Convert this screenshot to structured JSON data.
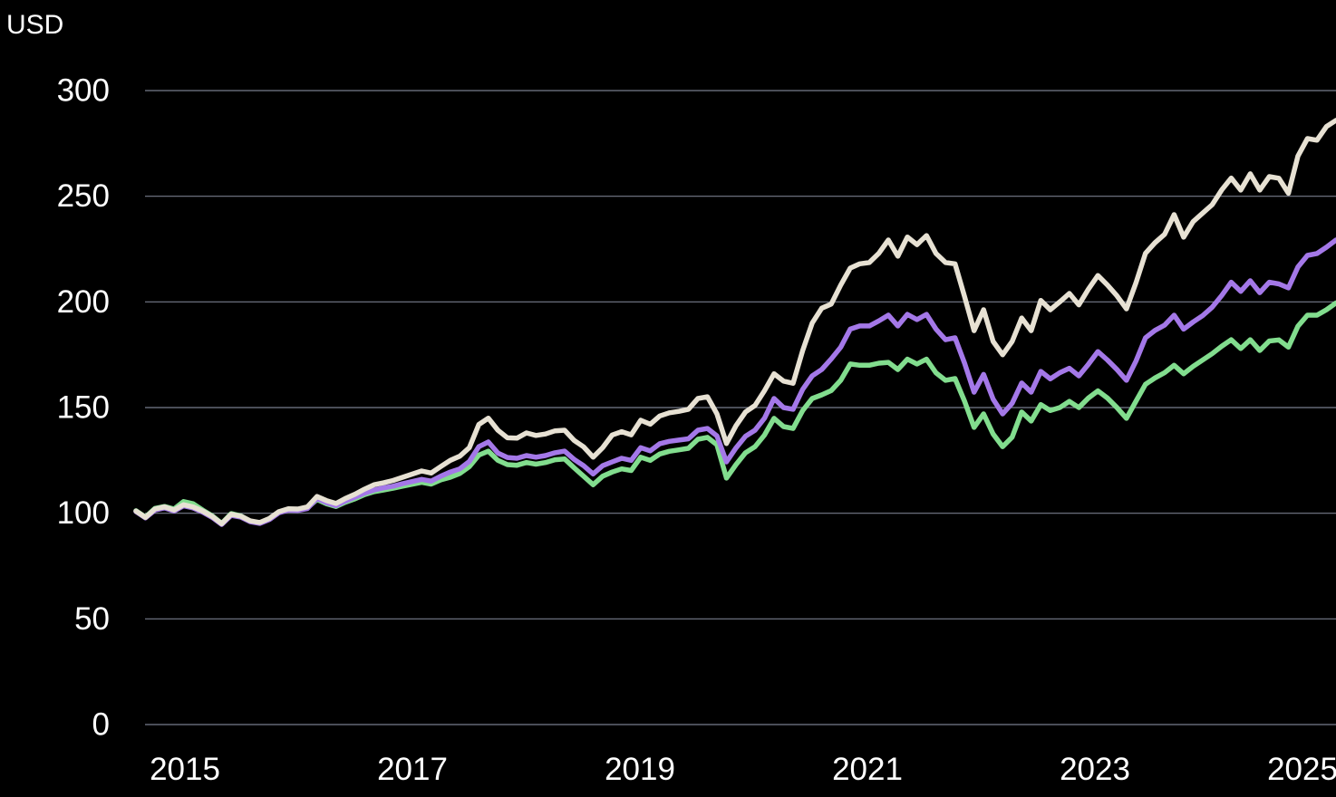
{
  "y_axis": {
    "unit_label": "USD",
    "ticks": [
      0,
      50,
      100,
      150,
      200,
      250,
      300
    ],
    "min": 0,
    "max": 300
  },
  "x_axis": {
    "tick_labels": [
      "2015",
      "2017",
      "2019",
      "2021",
      "2023",
      "2025"
    ]
  },
  "colors": {
    "background": "#000000",
    "text": "#ffffff",
    "grid": "#8c93a4",
    "series_beige": "#e7e1d3",
    "series_purple": "#a478e8",
    "series_green": "#82dd8e"
  },
  "chart_data": {
    "type": "line",
    "title": "",
    "ylabel": "USD",
    "ylim": [
      0,
      300
    ],
    "grid": "horizontal",
    "legend_position": "none",
    "x_start": "2015-01",
    "x_end": "2025-07",
    "frequency": "monthly",
    "x_tick_years": [
      "2015",
      "2017",
      "2019",
      "2021",
      "2023",
      "2025"
    ],
    "series": [
      {
        "name": "beige",
        "color": "#e7e1d3",
        "values": [
          101,
          98,
          102,
          103,
          101.5,
          104,
          103,
          101,
          98.5,
          95,
          99.5,
          98.6,
          96.4,
          95.6,
          97.5,
          100.7,
          102.1,
          102,
          103,
          107.9,
          106,
          104.6,
          107,
          109,
          111.4,
          113.5,
          114.4,
          115.5,
          117,
          118.5,
          120,
          119,
          122.1,
          125,
          127,
          131,
          142,
          145,
          139.3,
          135.7,
          135.5,
          138,
          136.8,
          137.5,
          139,
          139.3,
          134.5,
          131.4,
          126.5,
          131,
          137,
          138.6,
          137.1,
          144,
          142.1,
          146,
          147.5,
          148.2,
          149.2,
          154.3,
          155.1,
          147,
          133,
          141.4,
          147.9,
          151,
          158,
          166,
          162.5,
          161.5,
          177,
          190,
          197,
          199,
          208,
          216,
          218,
          218.6,
          223,
          229.3,
          221.6,
          230.7,
          227.1,
          231.4,
          222.9,
          218.6,
          218,
          202.5,
          186.4,
          196.3,
          181.3,
          175,
          181.3,
          192.4,
          186.4,
          200.7,
          196.3,
          200,
          204,
          198.6,
          206,
          212.5,
          208,
          202.9,
          196.7,
          209,
          223,
          228,
          232,
          241.3,
          230.6,
          238,
          242,
          246,
          253,
          258.6,
          252.9,
          260.6,
          252.9,
          259.3,
          258.5,
          251.4,
          269,
          277.3,
          276.5,
          283,
          285.9
        ]
      },
      {
        "name": "purple",
        "color": "#a478e8",
        "values": [
          100.8,
          97.8,
          101.5,
          102.5,
          101,
          103.5,
          102.5,
          100.5,
          98,
          94.7,
          99,
          98.2,
          96,
          95.2,
          97,
          100.2,
          101.5,
          101.3,
          102.2,
          107,
          105,
          103.6,
          105.8,
          107.6,
          109.5,
          111,
          112,
          112.8,
          114,
          115,
          116,
          115.2,
          117.5,
          119.5,
          121,
          124.5,
          131.5,
          133.7,
          128.5,
          126.4,
          126,
          127.3,
          126.5,
          127.3,
          128.6,
          129.4,
          125.5,
          122.5,
          118.6,
          122.5,
          124.3,
          126,
          125,
          131,
          129.5,
          132.9,
          134,
          134.6,
          135.2,
          139.3,
          140.1,
          136.6,
          124.3,
          130.9,
          136.4,
          139.3,
          145,
          154.3,
          150,
          149.2,
          158.6,
          165,
          168,
          173,
          178.6,
          187.1,
          188.6,
          188.6,
          191,
          193.7,
          188.6,
          194.1,
          191.6,
          194.1,
          187.1,
          182.1,
          183,
          171,
          157.3,
          165.7,
          154,
          147,
          152,
          161.6,
          157.3,
          167.1,
          163.6,
          166.5,
          168.6,
          165,
          170.5,
          176.5,
          172.5,
          168,
          162.9,
          172,
          183,
          186.5,
          189,
          193.7,
          187.1,
          190.5,
          193.5,
          197.5,
          203,
          209.3,
          205,
          210,
          204.4,
          209.3,
          208.5,
          206.6,
          216.5,
          222,
          222.9,
          225.9,
          229.3
        ]
      },
      {
        "name": "green",
        "color": "#82dd8e",
        "values": [
          101.2,
          98.2,
          102.3,
          103.2,
          102,
          105.5,
          104.5,
          101.5,
          98.8,
          95.2,
          99.8,
          98.8,
          96.2,
          95.4,
          97.2,
          100.4,
          101.8,
          101.5,
          102.5,
          106.5,
          104.5,
          103.2,
          105.2,
          106.8,
          108.8,
          110.2,
          111,
          111.8,
          112.8,
          113.7,
          114.6,
          113.8,
          115.8,
          117,
          118.8,
          122,
          127.5,
          129.4,
          125,
          123,
          122.7,
          124,
          123.2,
          124,
          125.3,
          125.7,
          121.5,
          117.5,
          113.5,
          117.5,
          119.5,
          121,
          120.2,
          126.5,
          125,
          128,
          129.3,
          130,
          130.7,
          135,
          135.9,
          132.4,
          116.6,
          123,
          128.6,
          131.5,
          137,
          144.9,
          141,
          140.1,
          148.6,
          154.3,
          156,
          158,
          162.9,
          170.6,
          170,
          170,
          171,
          171.4,
          168,
          172.9,
          170.6,
          172.9,
          166.4,
          162.9,
          163.7,
          153,
          140.6,
          147,
          137.5,
          131.5,
          136,
          147.9,
          143.6,
          151.4,
          148.6,
          150,
          152.9,
          150,
          154.5,
          157.9,
          154.5,
          150,
          144.9,
          153,
          161,
          164,
          166.5,
          170,
          166,
          169.5,
          172.5,
          175.5,
          179,
          182.1,
          177.9,
          182.1,
          177,
          181.5,
          182,
          178.6,
          188.5,
          193.7,
          193.7,
          196.3,
          199.5
        ]
      }
    ]
  }
}
